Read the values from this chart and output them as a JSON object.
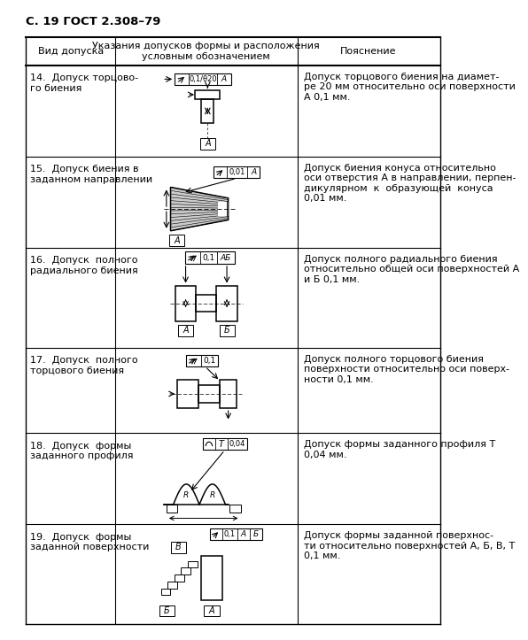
{
  "page_header": "С. 19 ГОСТ 2.308–79",
  "col1_header": "Вид допуска",
  "col2_header": "Указания допусков формы и расположения\nусловным обозначением",
  "col3_header": "Пояснение",
  "rows": [
    {
      "id": 14,
      "label": "14.  Допуск торцово-\nго биения",
      "explanation": "Допуск торцового биения на диамет-\nре 20 мм относительно оси поверхности\nА 0,1 мм."
    },
    {
      "id": 15,
      "label": "15.  Допуск биения в\nзаданном направлении",
      "explanation": "Допуск биения конуса относительно\nоси отверстия А в направлении, перпен-\nдикулярном  к  образующей  конуса\n0,01 мм."
    },
    {
      "id": 16,
      "label": "16.  Допуск  полного\nрадиального биения",
      "explanation": "Допуск полного радиального биения\nотносительно общей оси поверхностей А\nи Б 0,1 мм."
    },
    {
      "id": 17,
      "label": "17.  Допуск  полного\nторцового биения",
      "explanation": "Допуск полного торцового биения\nповерхности относительно оси поверх-\nности 0,1 мм."
    },
    {
      "id": 18,
      "label": "18.  Допуск  формы\nзаданного профиля",
      "explanation": "Допуск формы заданного профиля Т\n0,04 мм."
    },
    {
      "id": 19,
      "label": "19.  Допуск  формы\nзаданной поверхности",
      "explanation": "Допуск формы заданной поверхнос-\nти относительно поверхностей А, Б, В, Т\n0,1 мм."
    }
  ],
  "bg_color": "#ffffff",
  "text_color": "#000000",
  "line_color": "#000000",
  "row_heights": [
    1.55,
    1.55,
    1.7,
    1.45,
    1.55,
    1.7
  ]
}
